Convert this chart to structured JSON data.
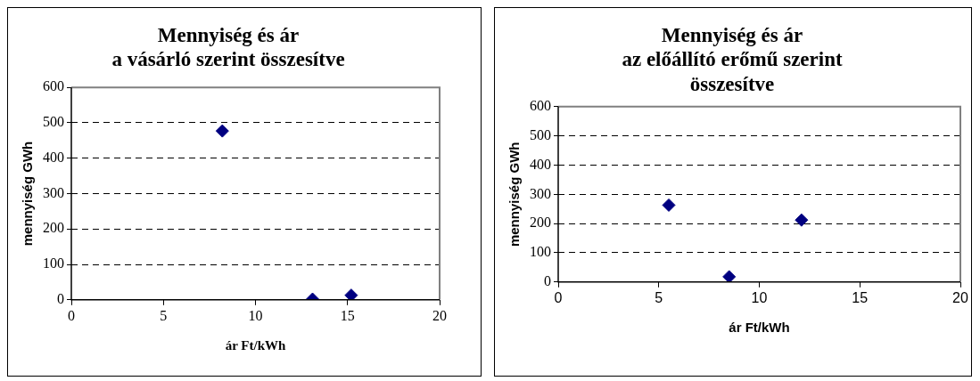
{
  "chart_data": [
    {
      "type": "scatter",
      "title": "Mennyiség és ár\na vásárló szerint összesítve",
      "xlabel": "ár Ft/kWh",
      "ylabel": "mennyiség GWh",
      "x": [
        8.2,
        13.1,
        15.2
      ],
      "values": [
        477,
        2,
        13
      ],
      "color": "#000080",
      "marker": "diamond",
      "xlim": [
        0,
        20
      ],
      "xticks": [
        0,
        5,
        10,
        15,
        20
      ],
      "ylim": [
        0,
        600
      ],
      "yticks": [
        0,
        100,
        200,
        300,
        400,
        500,
        600
      ],
      "grid": "y",
      "legend": false
    },
    {
      "type": "scatter",
      "title": "Mennyiség és ár\naz előállító erőmű szerint\nösszesítve",
      "xlabel": "ár Ft/kWh",
      "ylabel": "mennyiség GWh",
      "x": [
        5.5,
        8.5,
        12.1
      ],
      "values": [
        263,
        18,
        212
      ],
      "color": "#000080",
      "marker": "diamond",
      "xlim": [
        0,
        20
      ],
      "xticks": [
        0,
        5,
        10,
        15,
        20
      ],
      "ylim": [
        0,
        600
      ],
      "yticks": [
        0,
        100,
        200,
        300,
        400,
        500,
        600
      ],
      "grid": "y",
      "legend": false
    }
  ]
}
